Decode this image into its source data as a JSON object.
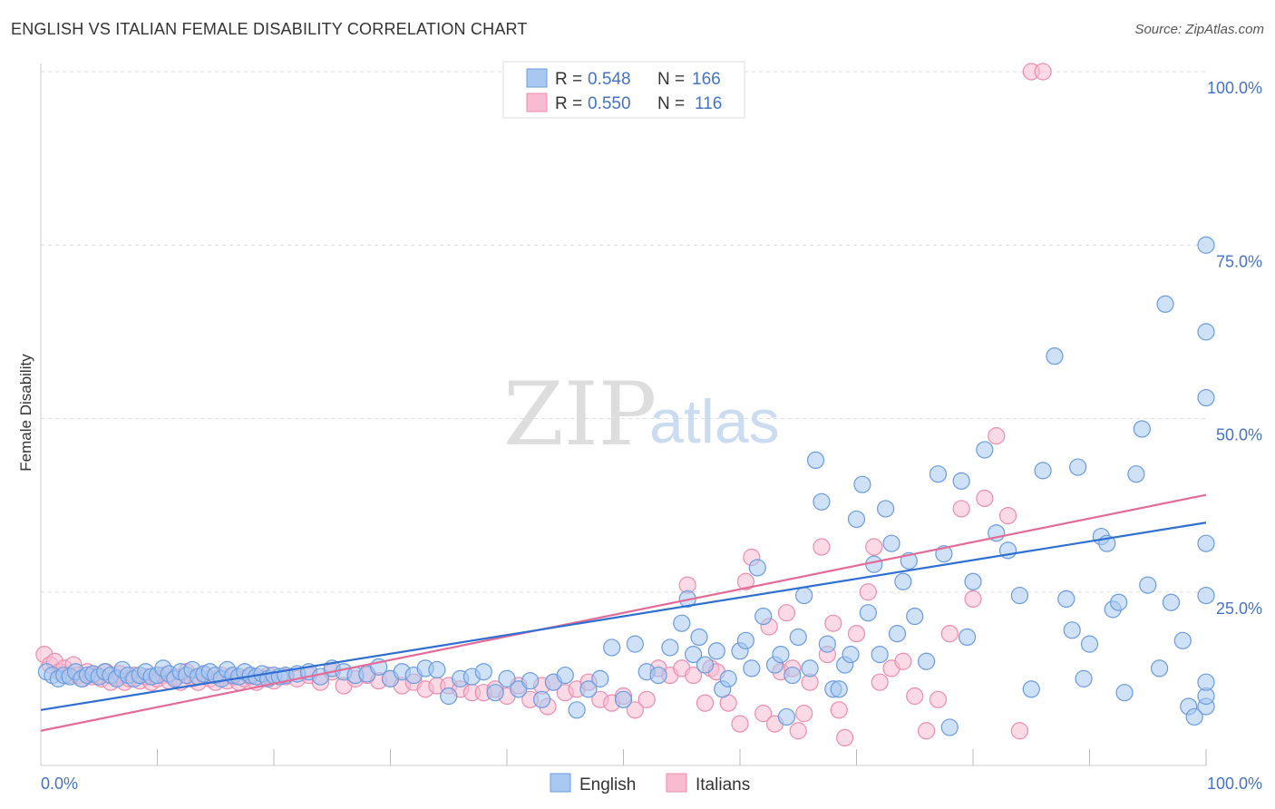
{
  "title": "ENGLISH VS ITALIAN FEMALE DISABILITY CORRELATION CHART",
  "source": "Source: ZipAtlas.com",
  "watermark": {
    "zip": "ZIP",
    "atlas": "atlas"
  },
  "colors": {
    "english_fill": "#a8c8f0",
    "english_stroke": "#6a9be0",
    "english_line": "#2f6fd0",
    "italians_fill": "#f8bcd0",
    "italians_stroke": "#ec8cae",
    "italians_line": "#e36b98",
    "grid": "#dddddd",
    "accent": "#4472c4"
  },
  "legend": {
    "rows": [
      {
        "r_label": "R =",
        "r_value": "0.548",
        "n_label": "N =",
        "n_value": "166"
      },
      {
        "r_label": "R =",
        "r_value": "0.550",
        "n_label": "N =",
        "n_value": "116"
      }
    ]
  },
  "chart_data": {
    "type": "scatter",
    "title": "ENGLISH VS ITALIAN FEMALE DISABILITY CORRELATION CHART",
    "xlabel": "",
    "ylabel": "Female Disability",
    "xlim": [
      0,
      100
    ],
    "ylim": [
      0,
      100
    ],
    "x_tick_labels": [
      "0.0%",
      "100.0%"
    ],
    "y_ticks": [
      25,
      50,
      75,
      100
    ],
    "y_tick_labels": [
      "25.0%",
      "50.0%",
      "75.0%",
      "100.0%"
    ],
    "grid": true,
    "legend_placement": "top-center",
    "bottom_legend": [
      "English",
      "Italians"
    ],
    "series": [
      {
        "name": "English",
        "trendline": [
          [
            0,
            8.0
          ],
          [
            100,
            35.0
          ]
        ],
        "points": [
          [
            0.5,
            13.5
          ],
          [
            1,
            13
          ],
          [
            1.5,
            12.5
          ],
          [
            2,
            13
          ],
          [
            2.5,
            12.8
          ],
          [
            3,
            13.5
          ],
          [
            3.5,
            12.5
          ],
          [
            4,
            13
          ],
          [
            4.5,
            13.2
          ],
          [
            5,
            12.8
          ],
          [
            5.5,
            13.5
          ],
          [
            6,
            13
          ],
          [
            6.5,
            12.5
          ],
          [
            7,
            13.8
          ],
          [
            7.5,
            13
          ],
          [
            8,
            12.5
          ],
          [
            8.5,
            13
          ],
          [
            9,
            13.5
          ],
          [
            9.5,
            12.8
          ],
          [
            10,
            13
          ],
          [
            10.5,
            14
          ],
          [
            11,
            13.2
          ],
          [
            11.5,
            12.5
          ],
          [
            12,
            13.5
          ],
          [
            12.5,
            13
          ],
          [
            13,
            13.8
          ],
          [
            13.5,
            12.8
          ],
          [
            14,
            13.2
          ],
          [
            14.5,
            13.5
          ],
          [
            15,
            13
          ],
          [
            15.5,
            12.5
          ],
          [
            16,
            13.8
          ],
          [
            16.5,
            13
          ],
          [
            17,
            12.8
          ],
          [
            17.5,
            13.5
          ],
          [
            18,
            13
          ],
          [
            18.5,
            12.8
          ],
          [
            19,
            13.2
          ],
          [
            19.5,
            12.5
          ],
          [
            20,
            13
          ],
          [
            20.5,
            12.8
          ],
          [
            21,
            13
          ],
          [
            22,
            13.2
          ],
          [
            23,
            13.5
          ],
          [
            24,
            12.8
          ],
          [
            25,
            14
          ],
          [
            26,
            13.5
          ],
          [
            27,
            13
          ],
          [
            28,
            13.2
          ],
          [
            29,
            14.2
          ],
          [
            30,
            12.5
          ],
          [
            31,
            13.5
          ],
          [
            32,
            13
          ],
          [
            33,
            14
          ],
          [
            34,
            13.8
          ],
          [
            35,
            10
          ],
          [
            36,
            12.5
          ],
          [
            37,
            12.8
          ],
          [
            38,
            13.5
          ],
          [
            39,
            10.5
          ],
          [
            40,
            12.5
          ],
          [
            41,
            11
          ],
          [
            42,
            12.2
          ],
          [
            43,
            9.5
          ],
          [
            44,
            12
          ],
          [
            45,
            13
          ],
          [
            46,
            8
          ],
          [
            47,
            11
          ],
          [
            48,
            12.5
          ],
          [
            49,
            17
          ],
          [
            50,
            9.5
          ],
          [
            51,
            17.5
          ],
          [
            52,
            13.5
          ],
          [
            53,
            13
          ],
          [
            54,
            17
          ],
          [
            55,
            20.5
          ],
          [
            55.5,
            24
          ],
          [
            56,
            16
          ],
          [
            56.5,
            18.5
          ],
          [
            57,
            14.5
          ],
          [
            58,
            16.5
          ],
          [
            58.5,
            11
          ],
          [
            59,
            12.5
          ],
          [
            60,
            16.5
          ],
          [
            60.5,
            18
          ],
          [
            61,
            14
          ],
          [
            61.5,
            28.5
          ],
          [
            62,
            21.5
          ],
          [
            63,
            14.5
          ],
          [
            63.5,
            16
          ],
          [
            64,
            7
          ],
          [
            64.5,
            13
          ],
          [
            65,
            18.5
          ],
          [
            65.5,
            24.5
          ],
          [
            66,
            14
          ],
          [
            66.5,
            44
          ],
          [
            67,
            38
          ],
          [
            67.5,
            17.5
          ],
          [
            68,
            11
          ],
          [
            68.5,
            11
          ],
          [
            69,
            14.5
          ],
          [
            69.5,
            16
          ],
          [
            70,
            35.5
          ],
          [
            70.5,
            40.5
          ],
          [
            71,
            22
          ],
          [
            71.5,
            29
          ],
          [
            72,
            16
          ],
          [
            72.5,
            37
          ],
          [
            73,
            32
          ],
          [
            73.5,
            19
          ],
          [
            74,
            26.5
          ],
          [
            74.5,
            29.5
          ],
          [
            75,
            21.5
          ],
          [
            76,
            15
          ],
          [
            77,
            42
          ],
          [
            77.5,
            30.5
          ],
          [
            78,
            5.5
          ],
          [
            79,
            41
          ],
          [
            79.5,
            18.5
          ],
          [
            80,
            26.5
          ],
          [
            81,
            45.5
          ],
          [
            82,
            33.5
          ],
          [
            83,
            31
          ],
          [
            84,
            24.5
          ],
          [
            85,
            11
          ],
          [
            86,
            42.5
          ],
          [
            87,
            59
          ],
          [
            88,
            24
          ],
          [
            88.5,
            19.5
          ],
          [
            89,
            43
          ],
          [
            89.5,
            12.5
          ],
          [
            90,
            17.5
          ],
          [
            91,
            33
          ],
          [
            91.5,
            32
          ],
          [
            92,
            22.5
          ],
          [
            92.5,
            23.5
          ],
          [
            93,
            10.5
          ],
          [
            94,
            42
          ],
          [
            94.5,
            48.5
          ],
          [
            95,
            26
          ],
          [
            96,
            14
          ],
          [
            96.5,
            66.5
          ],
          [
            97,
            23.5
          ],
          [
            98,
            18
          ],
          [
            98.5,
            8.5
          ],
          [
            99,
            7
          ],
          [
            100,
            62.5
          ],
          [
            100.5,
            24.5
          ],
          [
            101,
            32
          ],
          [
            102,
            8.5
          ],
          [
            102.5,
            53
          ],
          [
            103,
            10
          ],
          [
            104,
            75
          ],
          [
            105,
            12
          ]
        ]
      },
      {
        "name": "Italians",
        "trendline": [
          [
            0,
            5.0
          ],
          [
            100,
            39.0
          ]
        ],
        "points": [
          [
            0.3,
            16
          ],
          [
            0.8,
            14.5
          ],
          [
            1.2,
            15
          ],
          [
            1.6,
            13.5
          ],
          [
            2,
            14
          ],
          [
            2.4,
            13
          ],
          [
            2.8,
            14.5
          ],
          [
            3.2,
            13
          ],
          [
            3.6,
            12.5
          ],
          [
            4,
            13.5
          ],
          [
            4.4,
            12.8
          ],
          [
            4.8,
            13
          ],
          [
            5.2,
            12.5
          ],
          [
            5.6,
            13.5
          ],
          [
            6,
            12
          ],
          [
            6.4,
            12.8
          ],
          [
            6.8,
            13.2
          ],
          [
            7.2,
            12
          ],
          [
            7.6,
            12.5
          ],
          [
            8,
            13
          ],
          [
            8.5,
            12.2
          ],
          [
            9,
            12.8
          ],
          [
            9.5,
            12
          ],
          [
            10,
            12.5
          ],
          [
            10.5,
            13
          ],
          [
            11,
            12.2
          ],
          [
            11.5,
            12.8
          ],
          [
            12,
            12
          ],
          [
            12.5,
            13.5
          ],
          [
            13,
            12.5
          ],
          [
            13.5,
            12
          ],
          [
            14,
            13
          ],
          [
            14.5,
            12.5
          ],
          [
            15,
            12
          ],
          [
            15.5,
            13
          ],
          [
            16,
            12.2
          ],
          [
            16.5,
            12.8
          ],
          [
            17,
            12
          ],
          [
            17.5,
            12.5
          ],
          [
            18,
            12.8
          ],
          [
            18.5,
            12
          ],
          [
            19,
            12.5
          ],
          [
            19.5,
            13
          ],
          [
            20,
            12.2
          ],
          [
            21,
            12.8
          ],
          [
            22,
            12.5
          ],
          [
            23,
            13
          ],
          [
            24,
            12
          ],
          [
            25,
            13.5
          ],
          [
            26,
            11.5
          ],
          [
            27,
            12.5
          ],
          [
            28,
            13
          ],
          [
            29,
            12.2
          ],
          [
            30,
            12.5
          ],
          [
            31,
            11.5
          ],
          [
            32,
            12
          ],
          [
            33,
            11
          ],
          [
            34,
            11.5
          ],
          [
            35,
            11.5
          ],
          [
            36,
            11
          ],
          [
            37,
            10.5
          ],
          [
            38,
            10.5
          ],
          [
            39,
            11
          ],
          [
            40,
            10
          ],
          [
            41,
            11.5
          ],
          [
            42,
            9.5
          ],
          [
            43,
            11.5
          ],
          [
            43.5,
            8.5
          ],
          [
            44,
            12
          ],
          [
            45,
            10.5
          ],
          [
            46,
            11
          ],
          [
            47,
            12
          ],
          [
            48,
            9.5
          ],
          [
            49,
            9
          ],
          [
            50,
            10
          ],
          [
            51,
            8
          ],
          [
            52,
            9.5
          ],
          [
            53,
            14
          ],
          [
            54,
            13
          ],
          [
            55,
            14
          ],
          [
            55.5,
            26
          ],
          [
            56,
            13
          ],
          [
            57,
            9
          ],
          [
            57.5,
            14
          ],
          [
            58,
            13.5
          ],
          [
            59,
            9
          ],
          [
            60,
            6
          ],
          [
            60.5,
            26.5
          ],
          [
            61,
            30
          ],
          [
            62,
            7.5
          ],
          [
            62.5,
            20
          ],
          [
            63,
            6
          ],
          [
            63.5,
            13.5
          ],
          [
            64,
            22
          ],
          [
            64.5,
            14
          ],
          [
            65,
            5
          ],
          [
            65.5,
            7.5
          ],
          [
            66,
            12
          ],
          [
            67,
            31.5
          ],
          [
            67.5,
            16
          ],
          [
            68,
            20.5
          ],
          [
            68.5,
            8
          ],
          [
            69,
            4
          ],
          [
            70,
            19
          ],
          [
            71,
            25
          ],
          [
            71.5,
            31.5
          ],
          [
            72,
            12
          ],
          [
            73,
            14
          ],
          [
            74,
            15
          ],
          [
            75,
            10
          ],
          [
            76,
            5
          ],
          [
            77,
            9.5
          ],
          [
            78,
            19
          ],
          [
            79,
            37
          ],
          [
            80,
            24
          ],
          [
            81,
            38.5
          ],
          [
            82,
            47.5
          ],
          [
            83,
            36
          ],
          [
            84,
            5
          ],
          [
            85,
            100
          ],
          [
            86,
            100
          ]
        ]
      }
    ]
  }
}
